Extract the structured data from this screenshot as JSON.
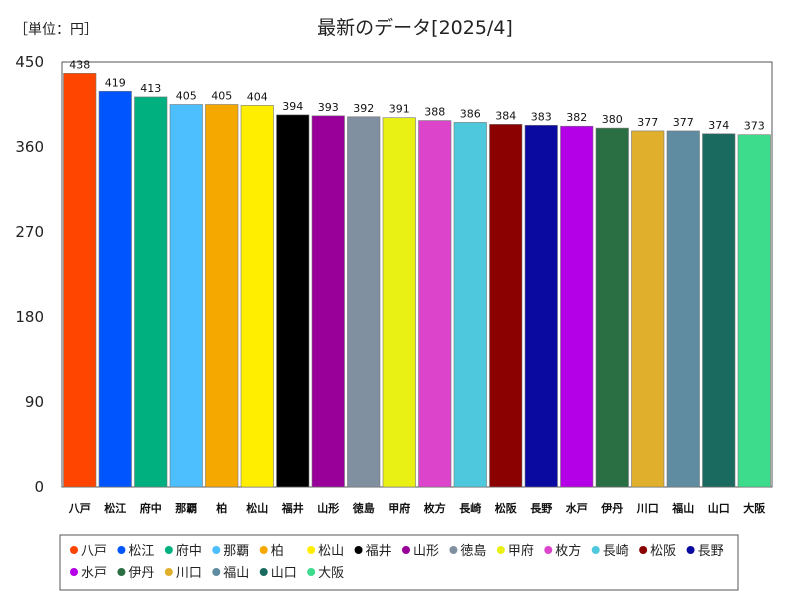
{
  "chart_data": {
    "type": "bar",
    "title": "最新のデータ[2025/4]",
    "unit_label": "［単位：円］",
    "ylim": [
      0,
      450
    ],
    "yticks": [
      0,
      90,
      180,
      270,
      360,
      450
    ],
    "grid": false,
    "legend_position": "bottom",
    "categories": [
      "八戸",
      "松江",
      "府中",
      "那覇",
      "柏",
      "松山",
      "福井",
      "山形",
      "徳島",
      "甲府",
      "枚方",
      "長崎",
      "松阪",
      "長野",
      "水戸",
      "伊丹",
      "川口",
      "福山",
      "山口",
      "大阪"
    ],
    "values": [
      438,
      419,
      413,
      405,
      405,
      404,
      394,
      393,
      392,
      391,
      388,
      386,
      384,
      383,
      382,
      380,
      377,
      377,
      374,
      373
    ],
    "colors": [
      "#ff4500",
      "#0055ff",
      "#00b07f",
      "#4dbfff",
      "#f5a800",
      "#ffee00",
      "#000000",
      "#990099",
      "#8090a0",
      "#e8f014",
      "#dd44cc",
      "#4ec8dc",
      "#8b0000",
      "#0a0aa0",
      "#b400e6",
      "#2a6e44",
      "#e0b02c",
      "#5f8ca0",
      "#1a6a60",
      "#3ddc8c"
    ]
  }
}
